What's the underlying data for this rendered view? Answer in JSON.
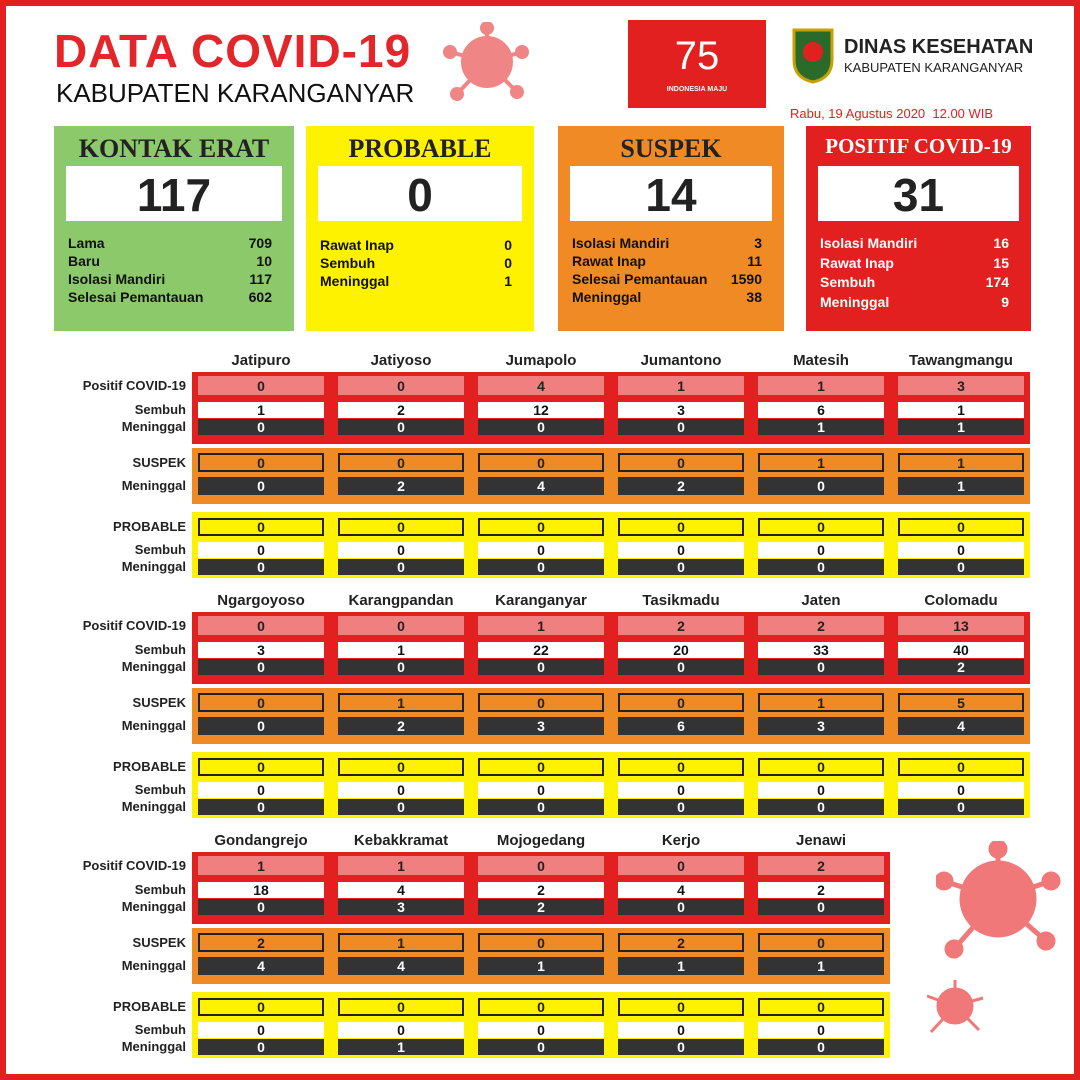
{
  "header": {
    "title": "DATA COVID-19",
    "subtitle": "KABUPATEN KARANGANYAR",
    "logo_number": "75",
    "logo_text": "INDONESIA MAJU",
    "agency": "DINAS KESEHATAN",
    "agency_region": "KABUPATEN KARANGANYAR",
    "date": "Rabu, 19 Agustus 2020  12.00 WIB"
  },
  "summary": [
    {
      "title": "KONTAK ERAT",
      "total": 117,
      "items": [
        {
          "label": "Lama",
          "value": 709
        },
        {
          "label": "Baru",
          "value": 10
        },
        {
          "label": "Isolasi Mandiri",
          "value": 117
        },
        {
          "label": "Selesai Pemantauan",
          "value": 602
        }
      ]
    },
    {
      "title": "PROBABLE",
      "total": 0,
      "items": [
        {
          "label": "Rawat Inap",
          "value": 0
        },
        {
          "label": "Sembuh",
          "value": 0
        },
        {
          "label": "Meninggal",
          "value": 1
        }
      ]
    },
    {
      "title": "SUSPEK",
      "total": 14,
      "items": [
        {
          "label": "Isolasi Mandiri",
          "value": 3
        },
        {
          "label": "Rawat Inap",
          "value": 11
        },
        {
          "label": "Selesai Pemantauan",
          "value": 1590
        },
        {
          "label": "Meninggal",
          "value": 38
        }
      ]
    },
    {
      "title": "POSITIF COVID-19",
      "total": 31,
      "items": [
        {
          "label": "Isolasi Mandiri",
          "value": 16
        },
        {
          "label": "Rawat Inap",
          "value": 15
        },
        {
          "label": "Sembuh",
          "value": 174
        },
        {
          "label": "Meninggal",
          "value": 9
        }
      ]
    }
  ],
  "groups": [
    {
      "districts": [
        "Jatipuro",
        "Jatiyoso",
        "Jumapolo",
        "Jumantono",
        "Matesih",
        "Tawangmangu"
      ],
      "sections": [
        {
          "title": "Positif COVID-19",
          "values": [
            0,
            0,
            4,
            1,
            1,
            3
          ],
          "rows": [
            {
              "label": "Sembuh",
              "values": [
                1,
                2,
                12,
                3,
                6,
                1
              ]
            },
            {
              "label": "Meninggal",
              "values": [
                0,
                0,
                0,
                0,
                1,
                1
              ]
            }
          ]
        },
        {
          "title": "SUSPEK",
          "values": [
            0,
            0,
            0,
            0,
            1,
            1
          ],
          "rows": [
            {
              "label": "Meninggal",
              "values": [
                0,
                2,
                4,
                2,
                0,
                1
              ]
            }
          ]
        },
        {
          "title": "PROBABLE",
          "values": [
            0,
            0,
            0,
            0,
            0,
            0
          ],
          "rows": [
            {
              "label": "Sembuh",
              "values": [
                0,
                0,
                0,
                0,
                0,
                0
              ]
            },
            {
              "label": "Meninggal",
              "values": [
                0,
                0,
                0,
                0,
                0,
                0
              ]
            }
          ]
        }
      ]
    },
    {
      "districts": [
        "Ngargoyoso",
        "Karangpandan",
        "Karanganyar",
        "Tasikmadu",
        "Jaten",
        "Colomadu"
      ],
      "sections": [
        {
          "title": "Positif COVID-19",
          "values": [
            0,
            0,
            1,
            2,
            2,
            13
          ],
          "rows": [
            {
              "label": "Sembuh",
              "values": [
                3,
                1,
                22,
                20,
                33,
                40
              ]
            },
            {
              "label": "Meninggal",
              "values": [
                0,
                0,
                0,
                0,
                0,
                2
              ]
            }
          ]
        },
        {
          "title": "SUSPEK",
          "values": [
            0,
            1,
            0,
            0,
            1,
            5
          ],
          "rows": [
            {
              "label": "Meninggal",
              "values": [
                0,
                2,
                3,
                6,
                3,
                4
              ]
            }
          ]
        },
        {
          "title": "PROBABLE",
          "values": [
            0,
            0,
            0,
            0,
            0,
            0
          ],
          "rows": [
            {
              "label": "Sembuh",
              "values": [
                0,
                0,
                0,
                0,
                0,
                0
              ]
            },
            {
              "label": "Meninggal",
              "values": [
                0,
                0,
                0,
                0,
                0,
                0
              ]
            }
          ]
        }
      ]
    },
    {
      "districts": [
        "Gondangrejo",
        "Kebakkramat",
        "Mojogedang",
        "Kerjo",
        "Jenawi"
      ],
      "sections": [
        {
          "title": "Positif COVID-19",
          "values": [
            1,
            1,
            0,
            0,
            2
          ],
          "rows": [
            {
              "label": "Sembuh",
              "values": [
                18,
                4,
                2,
                4,
                2
              ]
            },
            {
              "label": "Meninggal",
              "values": [
                0,
                3,
                2,
                0,
                0
              ]
            }
          ]
        },
        {
          "title": "SUSPEK",
          "values": [
            2,
            1,
            0,
            2,
            0
          ],
          "rows": [
            {
              "label": "Meninggal",
              "values": [
                4,
                4,
                1,
                1,
                1
              ]
            }
          ]
        },
        {
          "title": "PROBABLE",
          "values": [
            0,
            0,
            0,
            0,
            0
          ],
          "rows": [
            {
              "label": "Sembuh",
              "values": [
                0,
                0,
                0,
                0,
                0
              ]
            },
            {
              "label": "Meninggal",
              "values": [
                0,
                1,
                0,
                0,
                0
              ]
            }
          ]
        }
      ]
    }
  ]
}
